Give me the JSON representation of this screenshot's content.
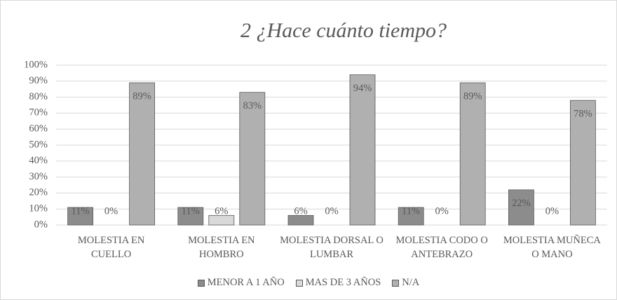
{
  "chart_data": {
    "type": "bar",
    "title": "2 ¿Hace cuánto tiempo?",
    "categories": [
      "MOLESTIA EN CUELLO",
      "MOLESTIA EN HOMBRO",
      "MOLESTIA DORSAL O LUMBAR",
      "MOLESTIA CODO O ANTEBRAZO",
      "MOLESTIA MUÑECA O MANO"
    ],
    "series": [
      {
        "name": "MENOR A 1 AÑO",
        "color": "#8c8c8c",
        "values": [
          11,
          11,
          6,
          11,
          22
        ],
        "value_labels": [
          "11%",
          "11%",
          "6%",
          "11%",
          "22%"
        ]
      },
      {
        "name": "MAS DE 3 AÑOS",
        "color": "#d9d9d9",
        "values": [
          0,
          6,
          0,
          0,
          0
        ],
        "value_labels": [
          "0%",
          "6%",
          "0%",
          "0%",
          "0%"
        ]
      },
      {
        "name": "N/A",
        "color": "#b0b0b0",
        "values": [
          89,
          83,
          94,
          89,
          78
        ],
        "value_labels": [
          "89%",
          "83%",
          "94%",
          "89%",
          "78%"
        ]
      }
    ],
    "ylim": [
      0,
      100
    ],
    "yticks": [
      {
        "value": 0,
        "label": "0%"
      },
      {
        "value": 10,
        "label": "10%"
      },
      {
        "value": 20,
        "label": "20%"
      },
      {
        "value": 30,
        "label": "30%"
      },
      {
        "value": 40,
        "label": "40%"
      },
      {
        "value": 50,
        "label": "50%"
      },
      {
        "value": 60,
        "label": "60%"
      },
      {
        "value": 70,
        "label": "70%"
      },
      {
        "value": 80,
        "label": "80%"
      },
      {
        "value": 90,
        "label": "90%"
      },
      {
        "value": 100,
        "label": "100%"
      }
    ],
    "grid": true,
    "legend": "bottom"
  }
}
